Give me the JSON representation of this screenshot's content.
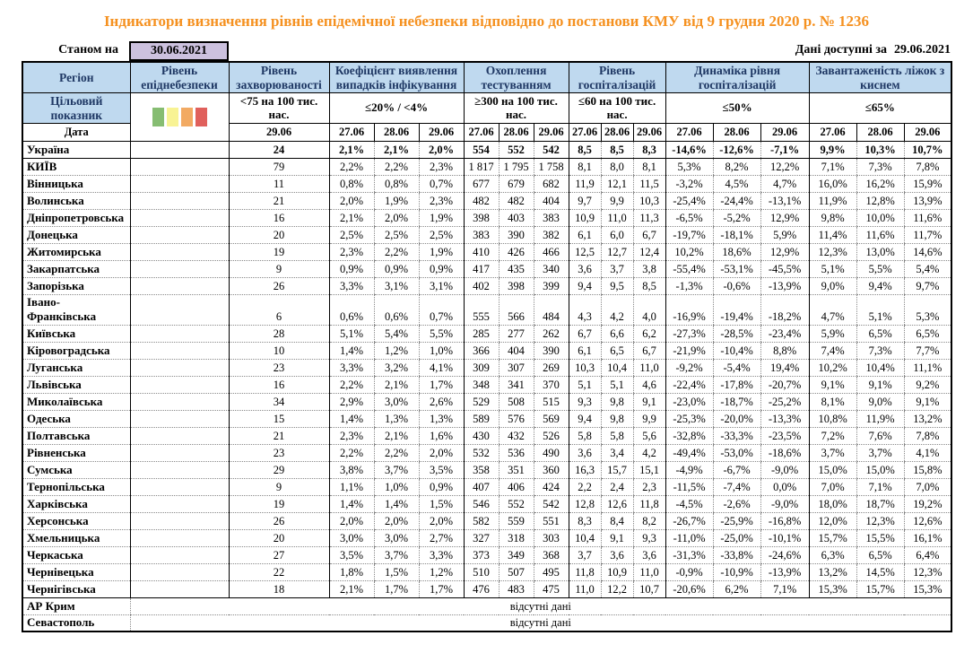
{
  "title": "Індикатори визначення рівнів епідемічної небезпеки відповідно до постанови КМУ від 9 грудня 2020 р. № 1236",
  "meta": {
    "as_of_label": "Станом на",
    "as_of_date": "30.06.2021",
    "available_label": "Дані доступні за",
    "available_date": "29.06.2021"
  },
  "colors": {
    "title_orange": "#F59120",
    "header_blue": "#BFD9EF",
    "header_text": "#1F3864",
    "level_green": "#8BBE7B",
    "cell_green_bg": "#DDEBD4",
    "cell_green_text": "#538135",
    "cell_pink_bg": "#F5CBC8",
    "cell_pink_text": "#953735",
    "date_box_bg": "#CCC1DE"
  },
  "legend_swatches": [
    {
      "name": "green-level-swatch",
      "color": "#86BD72"
    },
    {
      "name": "yellow-level-swatch",
      "color": "#F8F394"
    },
    {
      "name": "orange-level-swatch",
      "color": "#F2AA63"
    },
    {
      "name": "red-level-swatch",
      "color": "#E0605C"
    }
  ],
  "table": {
    "region_header": "Регіон",
    "level_header": "Рівень епіднебезпеки",
    "target_row_label": "Цільовий показник",
    "date_row_label": "Дата",
    "no_data_text": "відсутні дані",
    "groups": [
      {
        "key": "incidence",
        "label": "Рівень захворюваності",
        "target": "<75 на 100 тис. нас.",
        "dates": [
          "29.06"
        ],
        "default_style": "g"
      },
      {
        "key": "coef",
        "label": "Коефіцієнт виявлення випадків інфікування",
        "target": "≤20% / <4%",
        "dates": [
          "27.06",
          "28.06",
          "29.06"
        ],
        "default_style": "g"
      },
      {
        "key": "testing",
        "label": "Охоплення тестуванням",
        "target": "≥300 на 100 тис. нас.",
        "dates": [
          "27.06",
          "28.06",
          "29.06"
        ],
        "default_style": "g"
      },
      {
        "key": "hosp",
        "label": "Рівень госпіталізацій",
        "target": "≤60 на 100 тис. нас.",
        "dates": [
          "27.06",
          "28.06",
          "29.06"
        ],
        "default_style": "w"
      },
      {
        "key": "dyn",
        "label": "Динаміка рівня госпіталізацій",
        "target": "≤50%",
        "dates": [
          "27.06",
          "28.06",
          "29.06"
        ],
        "default_style": "w"
      },
      {
        "key": "beds",
        "label": "Завантаженість ліжок з киснем",
        "target": "≤65%",
        "dates": [
          "27.06",
          "28.06",
          "29.06"
        ],
        "default_style": "w"
      }
    ],
    "rows": [
      {
        "region": "Україна",
        "bold": true,
        "rule_below": true,
        "level": "white",
        "incidence": [
          "24"
        ],
        "coef": [
          "2,1%",
          "2,1%",
          "2,0%"
        ],
        "testing": [
          "554",
          "552",
          "542"
        ],
        "hosp": [
          "8,5",
          "8,5",
          "8,3"
        ],
        "dyn": [
          "-14,6%",
          "-12,6%",
          "-7,1%"
        ],
        "beds": [
          "9,9%",
          "10,3%",
          "10,7%"
        ]
      },
      {
        "region": "КИЇВ",
        "level": "green",
        "incidence": [
          "79"
        ],
        "styles": {
          "incidence": [
            "w"
          ]
        },
        "coef": [
          "2,2%",
          "2,2%",
          "2,3%"
        ],
        "testing": [
          "1 817",
          "1 795",
          "1 758"
        ],
        "hosp": [
          "8,1",
          "8,0",
          "8,1"
        ],
        "dyn": [
          "5,3%",
          "8,2%",
          "12,2%"
        ],
        "beds": [
          "7,1%",
          "7,3%",
          "7,8%"
        ]
      },
      {
        "region": "Вінницька",
        "level": "green",
        "incidence": [
          "11"
        ],
        "coef": [
          "0,8%",
          "0,8%",
          "0,7%"
        ],
        "testing": [
          "677",
          "679",
          "682"
        ],
        "hosp": [
          "11,9",
          "12,1",
          "11,5"
        ],
        "dyn": [
          "-3,2%",
          "4,5%",
          "4,7%"
        ],
        "beds": [
          "16,0%",
          "16,2%",
          "15,9%"
        ]
      },
      {
        "region": "Волинська",
        "level": "green",
        "incidence": [
          "21"
        ],
        "coef": [
          "2,0%",
          "1,9%",
          "2,3%"
        ],
        "testing": [
          "482",
          "482",
          "404"
        ],
        "hosp": [
          "9,7",
          "9,9",
          "10,3"
        ],
        "dyn": [
          "-25,4%",
          "-24,4%",
          "-13,1%"
        ],
        "beds": [
          "11,9%",
          "12,8%",
          "13,9%"
        ]
      },
      {
        "region": "Дніпропетровська",
        "level": "green",
        "incidence": [
          "16"
        ],
        "coef": [
          "2,1%",
          "2,0%",
          "1,9%"
        ],
        "testing": [
          "398",
          "403",
          "383"
        ],
        "hosp": [
          "10,9",
          "11,0",
          "11,3"
        ],
        "dyn": [
          "-6,5%",
          "-5,2%",
          "12,9%"
        ],
        "beds": [
          "9,8%",
          "10,0%",
          "11,6%"
        ]
      },
      {
        "region": "Донецька",
        "level": "green",
        "incidence": [
          "20"
        ],
        "coef": [
          "2,5%",
          "2,5%",
          "2,5%"
        ],
        "testing": [
          "383",
          "390",
          "382"
        ],
        "hosp": [
          "6,1",
          "6,0",
          "6,7"
        ],
        "dyn": [
          "-19,7%",
          "-18,1%",
          "5,9%"
        ],
        "beds": [
          "11,4%",
          "11,6%",
          "11,7%"
        ]
      },
      {
        "region": "Житомирська",
        "level": "green",
        "incidence": [
          "19"
        ],
        "coef": [
          "2,3%",
          "2,2%",
          "1,9%"
        ],
        "testing": [
          "410",
          "426",
          "466"
        ],
        "hosp": [
          "12,5",
          "12,7",
          "12,4"
        ],
        "dyn": [
          "10,2%",
          "18,6%",
          "12,9%"
        ],
        "beds": [
          "12,3%",
          "13,0%",
          "14,6%"
        ]
      },
      {
        "region": "Закарпатська",
        "level": "green",
        "incidence": [
          "9"
        ],
        "coef": [
          "0,9%",
          "0,9%",
          "0,9%"
        ],
        "testing": [
          "417",
          "435",
          "340"
        ],
        "hosp": [
          "3,6",
          "3,7",
          "3,8"
        ],
        "dyn": [
          "-55,4%",
          "-53,1%",
          "-45,5%"
        ],
        "beds": [
          "5,1%",
          "5,5%",
          "5,4%"
        ]
      },
      {
        "region": "Запорізька",
        "level": "green",
        "incidence": [
          "26"
        ],
        "coef": [
          "3,3%",
          "3,1%",
          "3,1%"
        ],
        "testing": [
          "402",
          "398",
          "399"
        ],
        "hosp": [
          "9,4",
          "9,5",
          "8,5"
        ],
        "dyn": [
          "-1,3%",
          "-0,6%",
          "-13,9%"
        ],
        "beds": [
          "9,0%",
          "9,4%",
          "9,7%"
        ]
      },
      {
        "region": "Івано-\nФранківська",
        "level": "green",
        "incidence": [
          "6"
        ],
        "coef": [
          "0,6%",
          "0,6%",
          "0,7%"
        ],
        "testing": [
          "555",
          "566",
          "484"
        ],
        "hosp": [
          "4,3",
          "4,2",
          "4,0"
        ],
        "dyn": [
          "-16,9%",
          "-19,4%",
          "-18,2%"
        ],
        "beds": [
          "4,7%",
          "5,1%",
          "5,3%"
        ]
      },
      {
        "region": "Київська",
        "level": "green",
        "incidence": [
          "28"
        ],
        "coef": [
          "5,1%",
          "5,4%",
          "5,5%"
        ],
        "testing": [
          "285",
          "277",
          "262"
        ],
        "styles": {
          "coef": [
            "w",
            "w",
            "w"
          ],
          "testing": [
            "p",
            "p",
            "p"
          ]
        },
        "hosp": [
          "6,7",
          "6,6",
          "6,2"
        ],
        "dyn": [
          "-27,3%",
          "-28,5%",
          "-23,4%"
        ],
        "beds": [
          "5,9%",
          "6,5%",
          "6,5%"
        ]
      },
      {
        "region": "Кіровоградська",
        "level": "green",
        "incidence": [
          "10"
        ],
        "coef": [
          "1,4%",
          "1,2%",
          "1,0%"
        ],
        "testing": [
          "366",
          "404",
          "390"
        ],
        "hosp": [
          "6,1",
          "6,5",
          "6,7"
        ],
        "dyn": [
          "-21,9%",
          "-10,4%",
          "8,8%"
        ],
        "beds": [
          "7,4%",
          "7,3%",
          "7,7%"
        ]
      },
      {
        "region": "Луганська",
        "level": "green",
        "incidence": [
          "23"
        ],
        "coef": [
          "3,3%",
          "3,2%",
          "4,1%"
        ],
        "testing": [
          "309",
          "307",
          "269"
        ],
        "styles": {
          "coef": [
            "g",
            "g",
            "w"
          ],
          "testing": [
            "g",
            "g",
            "p"
          ]
        },
        "hosp": [
          "10,3",
          "10,4",
          "11,0"
        ],
        "dyn": [
          "-9,2%",
          "-5,4%",
          "19,4%"
        ],
        "beds": [
          "10,2%",
          "10,4%",
          "11,1%"
        ]
      },
      {
        "region": "Львівська",
        "level": "green",
        "incidence": [
          "16"
        ],
        "coef": [
          "2,2%",
          "2,1%",
          "1,7%"
        ],
        "testing": [
          "348",
          "341",
          "370"
        ],
        "hosp": [
          "5,1",
          "5,1",
          "4,6"
        ],
        "dyn": [
          "-22,4%",
          "-17,8%",
          "-20,7%"
        ],
        "beds": [
          "9,1%",
          "9,1%",
          "9,2%"
        ]
      },
      {
        "region": "Миколаївська",
        "level": "green",
        "incidence": [
          "34"
        ],
        "coef": [
          "2,9%",
          "3,0%",
          "2,6%"
        ],
        "testing": [
          "529",
          "508",
          "515"
        ],
        "hosp": [
          "9,3",
          "9,8",
          "9,1"
        ],
        "dyn": [
          "-23,0%",
          "-18,7%",
          "-25,2%"
        ],
        "beds": [
          "8,1%",
          "9,0%",
          "9,1%"
        ]
      },
      {
        "region": "Одеська",
        "level": "green",
        "incidence": [
          "15"
        ],
        "coef": [
          "1,4%",
          "1,3%",
          "1,3%"
        ],
        "testing": [
          "589",
          "576",
          "569"
        ],
        "hosp": [
          "9,4",
          "9,8",
          "9,9"
        ],
        "dyn": [
          "-25,3%",
          "-20,0%",
          "-13,3%"
        ],
        "beds": [
          "10,8%",
          "11,9%",
          "13,2%"
        ]
      },
      {
        "region": "Полтавська",
        "level": "green",
        "incidence": [
          "21"
        ],
        "coef": [
          "2,3%",
          "2,1%",
          "1,6%"
        ],
        "testing": [
          "430",
          "432",
          "526"
        ],
        "hosp": [
          "5,8",
          "5,8",
          "5,6"
        ],
        "dyn": [
          "-32,8%",
          "-33,3%",
          "-23,5%"
        ],
        "beds": [
          "7,2%",
          "7,6%",
          "7,8%"
        ]
      },
      {
        "region": "Рівненська",
        "level": "green",
        "incidence": [
          "23"
        ],
        "coef": [
          "2,2%",
          "2,2%",
          "2,0%"
        ],
        "testing": [
          "532",
          "536",
          "490"
        ],
        "hosp": [
          "3,6",
          "3,4",
          "4,2"
        ],
        "dyn": [
          "-49,4%",
          "-53,0%",
          "-18,6%"
        ],
        "beds": [
          "3,7%",
          "3,7%",
          "4,1%"
        ]
      },
      {
        "region": "Сумська",
        "level": "green",
        "incidence": [
          "29"
        ],
        "coef": [
          "3,8%",
          "3,7%",
          "3,5%"
        ],
        "testing": [
          "358",
          "351",
          "360"
        ],
        "hosp": [
          "16,3",
          "15,7",
          "15,1"
        ],
        "dyn": [
          "-4,9%",
          "-6,7%",
          "-9,0%"
        ],
        "beds": [
          "15,0%",
          "15,0%",
          "15,8%"
        ]
      },
      {
        "region": "Тернопільська",
        "level": "green",
        "incidence": [
          "9"
        ],
        "coef": [
          "1,1%",
          "1,0%",
          "0,9%"
        ],
        "testing": [
          "407",
          "406",
          "424"
        ],
        "hosp": [
          "2,2",
          "2,4",
          "2,3"
        ],
        "dyn": [
          "-11,5%",
          "-7,4%",
          "0,0%"
        ],
        "beds": [
          "7,0%",
          "7,1%",
          "7,0%"
        ]
      },
      {
        "region": "Харківська",
        "level": "green",
        "incidence": [
          "19"
        ],
        "coef": [
          "1,4%",
          "1,4%",
          "1,5%"
        ],
        "testing": [
          "546",
          "552",
          "542"
        ],
        "hosp": [
          "12,8",
          "12,6",
          "11,8"
        ],
        "dyn": [
          "-4,5%",
          "-2,6%",
          "-9,0%"
        ],
        "beds": [
          "18,0%",
          "18,7%",
          "19,2%"
        ]
      },
      {
        "region": "Херсонська",
        "level": "green",
        "incidence": [
          "26"
        ],
        "coef": [
          "2,0%",
          "2,0%",
          "2,0%"
        ],
        "testing": [
          "582",
          "559",
          "551"
        ],
        "hosp": [
          "8,3",
          "8,4",
          "8,2"
        ],
        "dyn": [
          "-26,7%",
          "-25,9%",
          "-16,8%"
        ],
        "beds": [
          "12,0%",
          "12,3%",
          "12,6%"
        ]
      },
      {
        "region": "Хмельницька",
        "level": "green",
        "incidence": [
          "20"
        ],
        "coef": [
          "3,0%",
          "3,0%",
          "2,7%"
        ],
        "testing": [
          "327",
          "318",
          "303"
        ],
        "hosp": [
          "10,4",
          "9,1",
          "9,3"
        ],
        "dyn": [
          "-11,0%",
          "-25,0%",
          "-10,1%"
        ],
        "beds": [
          "15,7%",
          "15,5%",
          "16,1%"
        ]
      },
      {
        "region": "Черкаська",
        "level": "green",
        "incidence": [
          "27"
        ],
        "coef": [
          "3,5%",
          "3,7%",
          "3,3%"
        ],
        "testing": [
          "373",
          "349",
          "368"
        ],
        "hosp": [
          "3,7",
          "3,6",
          "3,6"
        ],
        "dyn": [
          "-31,3%",
          "-33,8%",
          "-24,6%"
        ],
        "beds": [
          "6,3%",
          "6,5%",
          "6,4%"
        ]
      },
      {
        "region": "Чернівецька",
        "level": "green",
        "incidence": [
          "22"
        ],
        "coef": [
          "1,8%",
          "1,5%",
          "1,2%"
        ],
        "testing": [
          "510",
          "507",
          "495"
        ],
        "hosp": [
          "11,8",
          "10,9",
          "11,0"
        ],
        "dyn": [
          "-0,9%",
          "-10,9%",
          "-13,9%"
        ],
        "beds": [
          "13,2%",
          "14,5%",
          "12,3%"
        ]
      },
      {
        "region": "Чернігівська",
        "rule_below": true,
        "level": "green",
        "incidence": [
          "18"
        ],
        "coef": [
          "2,1%",
          "1,7%",
          "1,7%"
        ],
        "testing": [
          "476",
          "483",
          "475"
        ],
        "hosp": [
          "11,0",
          "12,2",
          "10,7"
        ],
        "dyn": [
          "-20,6%",
          "6,2%",
          "7,1%"
        ],
        "beds": [
          "15,3%",
          "15,7%",
          "15,3%"
        ]
      },
      {
        "region": "АР Крим",
        "no_data": true
      },
      {
        "region": "Севастополь",
        "no_data": true,
        "last": true
      }
    ]
  }
}
